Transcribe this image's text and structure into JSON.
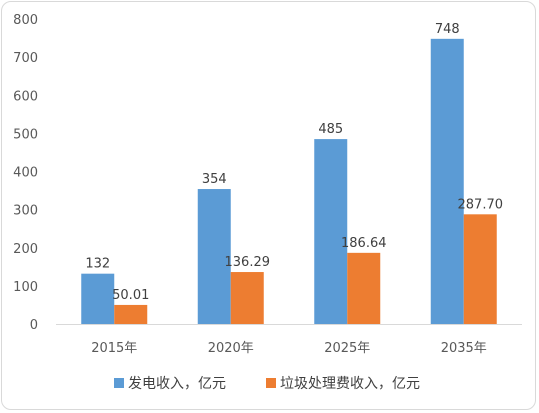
{
  "chart_data": {
    "type": "bar",
    "categories": [
      "2015年",
      "2020年",
      "2025年",
      "2035年"
    ],
    "series": [
      {
        "name": "发电收入，亿元",
        "values": [
          132,
          354,
          485,
          748
        ],
        "labels": [
          "132",
          "354",
          "485",
          "748"
        ],
        "color": "#5b9bd5"
      },
      {
        "name": "垃圾处理费收入，亿元",
        "values": [
          50.01,
          136.29,
          186.64,
          287.7
        ],
        "labels": [
          "50.01",
          "136.29",
          "186.64",
          "287.70"
        ],
        "color": "#ed7d31"
      }
    ],
    "yticks": [
      "0",
      "100",
      "200",
      "300",
      "400",
      "500",
      "600",
      "700",
      "800"
    ],
    "ylim": [
      0,
      800
    ],
    "grid": false,
    "legend_position": "bottom",
    "title": "",
    "xlabel": "",
    "ylabel": ""
  }
}
